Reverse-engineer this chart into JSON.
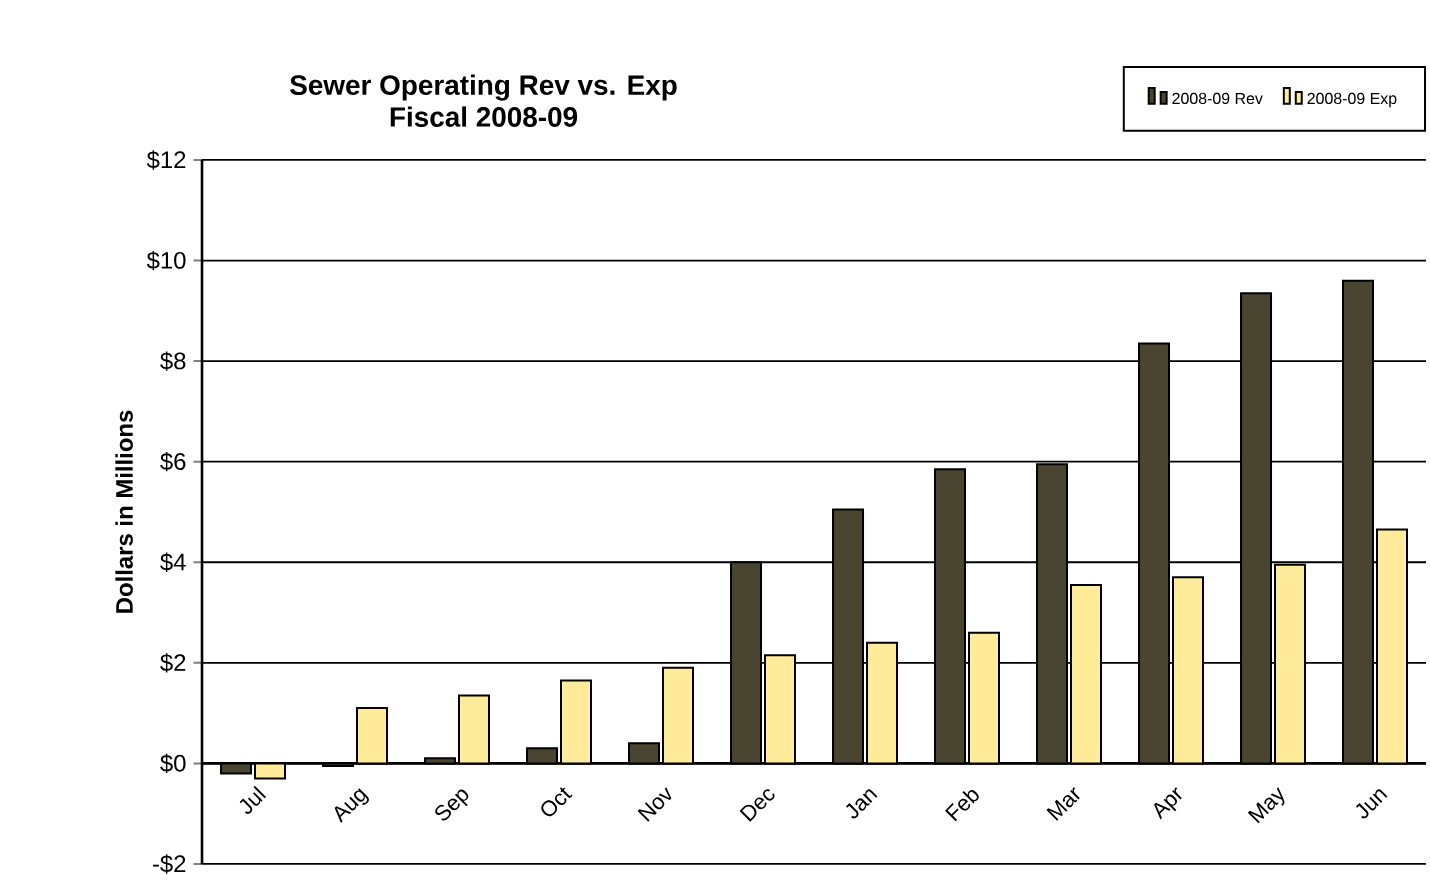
{
  "chart_data": {
    "type": "bar",
    "title": "Sewer Operating Rev vs. Exp",
    "subtitle": "Fiscal 2008-09",
    "ylabel": "Dollars in Millions",
    "categories": [
      "Jul",
      "Aug",
      "Sep",
      "Oct",
      "Nov",
      "Dec",
      "Jan",
      "Feb",
      "Mar",
      "Apr",
      "May",
      "Jun"
    ],
    "series": [
      {
        "name": "2008-09 Rev",
        "color": "#4a4530",
        "values": [
          -0.2,
          -0.05,
          0.1,
          0.3,
          0.4,
          4.0,
          5.05,
          5.85,
          5.95,
          8.35,
          9.35,
          9.6
        ]
      },
      {
        "name": "2008-09 Exp",
        "color": "#ffeb99",
        "values": [
          -0.3,
          1.1,
          1.35,
          1.65,
          1.9,
          2.15,
          2.4,
          2.6,
          3.55,
          3.7,
          3.95,
          4.65
        ]
      }
    ],
    "ylim": [
      -2,
      12
    ],
    "yticks": [
      {
        "value": -2,
        "label": "-$2"
      },
      {
        "value": 0,
        "label": "$0"
      },
      {
        "value": 2,
        "label": "$2"
      },
      {
        "value": 4,
        "label": "$4"
      },
      {
        "value": 6,
        "label": "$6"
      },
      {
        "value": 8,
        "label": "$8"
      },
      {
        "value": 10,
        "label": "$10"
      },
      {
        "value": 12,
        "label": "$12"
      }
    ],
    "grid": "y",
    "legend": "top right"
  }
}
